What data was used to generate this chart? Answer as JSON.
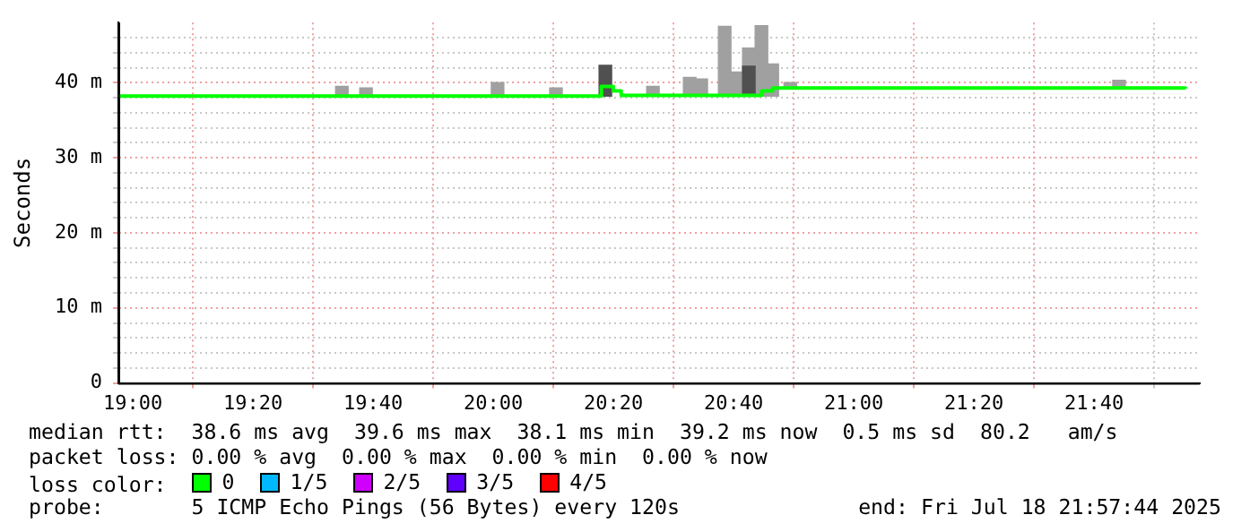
{
  "chart_data": {
    "type": "step",
    "ylabel": "Seconds",
    "xlim": [
      18.96,
      21.96
    ],
    "ylim": [
      0,
      48
    ],
    "xticks": [
      {
        "value": 19,
        "label": "19:00"
      },
      {
        "value": 19.3333,
        "label": "19:20"
      },
      {
        "value": 19.6667,
        "label": "19:40"
      },
      {
        "value": 20,
        "label": "20:00"
      },
      {
        "value": 20.3333,
        "label": "20:20"
      },
      {
        "value": 20.6667,
        "label": "20:40"
      },
      {
        "value": 21,
        "label": "21:00"
      },
      {
        "value": 21.3333,
        "label": "21:20"
      },
      {
        "value": 21.6667,
        "label": "21:40"
      }
    ],
    "yticks": [
      0,
      {
        "value": 2,
        "label": null
      },
      {
        "value": 4,
        "label": null
      },
      {
        "value": 6,
        "label": null
      },
      {
        "value": 8,
        "label": null
      },
      {
        "value": 10,
        "label": "10 m"
      },
      {
        "value": 12,
        "label": null
      },
      {
        "value": 14,
        "label": null
      },
      {
        "value": 16,
        "label": null
      },
      {
        "value": 18,
        "label": null
      },
      {
        "value": 20,
        "label": "20 m"
      },
      {
        "value": 22,
        "label": null
      },
      {
        "value": 24,
        "label": null
      },
      {
        "value": 26,
        "label": null
      },
      {
        "value": 28,
        "label": null
      },
      {
        "value": 30,
        "label": "30 m"
      },
      {
        "value": 32,
        "label": null
      },
      {
        "value": 34,
        "label": null
      },
      {
        "value": 36,
        "label": null
      },
      {
        "value": 38,
        "label": null
      },
      {
        "value": 40,
        "label": "40 m"
      },
      {
        "value": 42,
        "label": null
      },
      {
        "value": 44,
        "label": null
      },
      {
        "value": 46,
        "label": null
      }
    ],
    "grid": true,
    "legend": "bottom",
    "marker": "none",
    "series": [
      {
        "type": "bar",
        "color": "#a0a0a0",
        "x": [
          19.58,
          19.647,
          20.012,
          20.174,
          20.443,
          20.545,
          20.577,
          20.642,
          20.674,
          20.709,
          20.744,
          20.774,
          20.824,
          21.736
        ],
        "base": [
          38.2,
          38.2,
          38.2,
          38.2,
          38.2,
          38.2,
          38.2,
          38.2,
          38.2,
          38.2,
          38.2,
          38.2,
          39.2,
          39.2
        ],
        "values": [
          1.3,
          1.1,
          1.8,
          1.1,
          1.3,
          2.5,
          2.3,
          9.3,
          3.2,
          6.4,
          9.4,
          4.3,
          0.8,
          1.1
        ]
      },
      {
        "type": "bar",
        "color": "#505050",
        "x": [
          20.311,
          20.709
        ],
        "base": [
          38.2,
          38.2
        ],
        "values": [
          4.1,
          4.0
        ]
      },
      {
        "name": "0",
        "color": "#00ff00",
        "x": [
          18.96,
          20.3,
          20.333,
          20.355,
          20.745,
          20.775,
          21.92
        ],
        "values": [
          38.2,
          39.5,
          38.9,
          38.3,
          38.9,
          39.3,
          39.2
        ]
      },
      {
        "name": "1/5",
        "color": "#00b8ff"
      },
      {
        "name": "2/5",
        "color": "#d000ff"
      },
      {
        "name": "3/5",
        "color": "#6000ff"
      },
      {
        "name": "4/5",
        "color": "#ff0000"
      }
    ],
    "annotations": [
      "median rtt:  38.6 ms avg  39.6 ms max  38.1 ms min  39.2 ms now  0.5 ms sd  80.2   am/s",
      "packet loss: 0.00 % avg  0.00 % max  0.00 % min  0.00 % now",
      "loss color:",
      "probe:       5 ICMP Echo Pings (56 Bytes) every 120s",
      "end: Fri Jul 18 21:57:44 2025"
    ]
  }
}
